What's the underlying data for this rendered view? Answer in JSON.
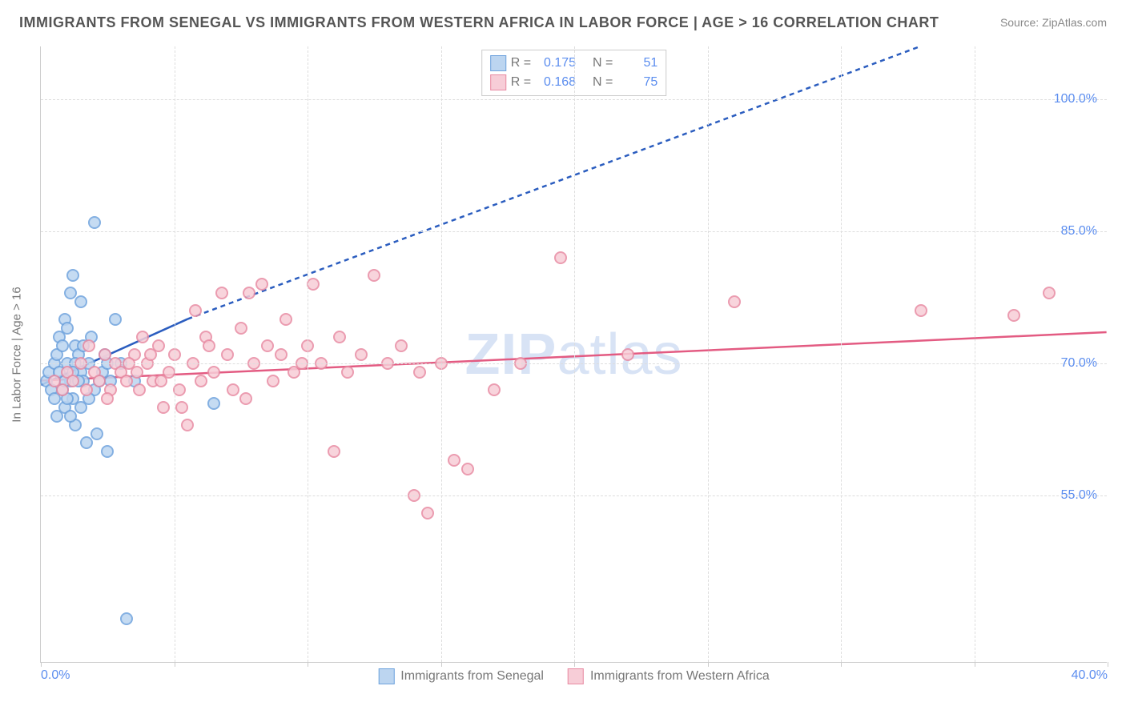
{
  "title": "IMMIGRANTS FROM SENEGAL VS IMMIGRANTS FROM WESTERN AFRICA IN LABOR FORCE | AGE > 16 CORRELATION CHART",
  "source": "Source: ZipAtlas.com",
  "watermark_prefix": "ZIP",
  "watermark_suffix": "atlas",
  "chart": {
    "type": "scatter",
    "ylabel": "In Labor Force | Age > 16",
    "xlim": [
      0,
      40
    ],
    "ylim": [
      36,
      106
    ],
    "yticks": [
      55.0,
      70.0,
      85.0,
      100.0
    ],
    "ytick_labels": [
      "55.0%",
      "70.0%",
      "85.0%",
      "100.0%"
    ],
    "xtick_positions": [
      0,
      5,
      10,
      15,
      20,
      25,
      30,
      35,
      40
    ],
    "xtick_labels": {
      "0": "0.0%",
      "40": "40.0%"
    },
    "grid_color": "#dddddd",
    "axis_color": "#cccccc",
    "background_color": "#ffffff"
  },
  "series": [
    {
      "name": "Immigrants from Senegal",
      "color_fill": "#bcd5f0",
      "color_stroke": "#6fa3dd",
      "line_color": "#2b5dbf",
      "R_label": "R =",
      "R": "0.175",
      "N_label": "N =",
      "N": "51",
      "trend_solid": {
        "x1": 0,
        "y1": 67.5,
        "x2": 5.5,
        "y2": 75.0
      },
      "trend_dash": {
        "x1": 5.5,
        "y1": 75.0,
        "x2": 33.0,
        "y2": 106.0
      },
      "points": [
        [
          0.2,
          68
        ],
        [
          0.3,
          69
        ],
        [
          0.4,
          67
        ],
        [
          0.5,
          70
        ],
        [
          0.5,
          66
        ],
        [
          0.6,
          71
        ],
        [
          0.6,
          64
        ],
        [
          0.7,
          73
        ],
        [
          0.7,
          69
        ],
        [
          0.8,
          67
        ],
        [
          0.8,
          72
        ],
        [
          0.9,
          75
        ],
        [
          0.9,
          65
        ],
        [
          1.0,
          70
        ],
        [
          1.0,
          74
        ],
        [
          1.1,
          78
        ],
        [
          1.1,
          68
        ],
        [
          1.2,
          80
        ],
        [
          1.2,
          66
        ],
        [
          1.3,
          72
        ],
        [
          1.3,
          63
        ],
        [
          1.4,
          71
        ],
        [
          1.5,
          77
        ],
        [
          1.5,
          69
        ],
        [
          1.6,
          68
        ],
        [
          1.7,
          61
        ],
        [
          1.8,
          70
        ],
        [
          1.9,
          73
        ],
        [
          2.0,
          67
        ],
        [
          2.0,
          86
        ],
        [
          2.1,
          62
        ],
        [
          2.3,
          69
        ],
        [
          2.4,
          71
        ],
        [
          2.5,
          60
        ],
        [
          2.6,
          68
        ],
        [
          2.8,
          75
        ],
        [
          3.0,
          70
        ],
        [
          3.2,
          41
        ],
        [
          3.5,
          68
        ],
        [
          1.0,
          66
        ],
        [
          1.1,
          64
        ],
        [
          1.3,
          70
        ],
        [
          1.4,
          68
        ],
        [
          1.6,
          72
        ],
        [
          1.8,
          66
        ],
        [
          2.2,
          68
        ],
        [
          2.5,
          70
        ],
        [
          1.2,
          69
        ],
        [
          0.9,
          68
        ],
        [
          1.5,
          65
        ],
        [
          6.5,
          65.5
        ]
      ]
    },
    {
      "name": "Immigrants from Western Africa",
      "color_fill": "#f7cdd7",
      "color_stroke": "#e88ba3",
      "line_color": "#e35b82",
      "R_label": "R =",
      "R": "0.168",
      "N_label": "N =",
      "N": "75",
      "trend_solid": {
        "x1": 0,
        "y1": 68.0,
        "x2": 40,
        "y2": 73.5
      },
      "trend_dash": null,
      "points": [
        [
          0.5,
          68
        ],
        [
          0.8,
          67
        ],
        [
          1.0,
          69
        ],
        [
          1.2,
          68
        ],
        [
          1.5,
          70
        ],
        [
          1.7,
          67
        ],
        [
          1.8,
          72
        ],
        [
          2.0,
          69
        ],
        [
          2.2,
          68
        ],
        [
          2.4,
          71
        ],
        [
          2.6,
          67
        ],
        [
          2.8,
          70
        ],
        [
          3.0,
          69
        ],
        [
          3.2,
          68
        ],
        [
          3.5,
          71
        ],
        [
          3.7,
          67
        ],
        [
          3.8,
          73
        ],
        [
          4.0,
          70
        ],
        [
          4.2,
          68
        ],
        [
          4.4,
          72
        ],
        [
          4.6,
          65
        ],
        [
          4.8,
          69
        ],
        [
          5.0,
          71
        ],
        [
          5.2,
          67
        ],
        [
          5.5,
          63
        ],
        [
          5.7,
          70
        ],
        [
          5.8,
          76
        ],
        [
          6.0,
          68
        ],
        [
          6.2,
          73
        ],
        [
          6.5,
          69
        ],
        [
          6.8,
          78
        ],
        [
          7.0,
          71
        ],
        [
          7.2,
          67
        ],
        [
          7.5,
          74
        ],
        [
          7.8,
          78
        ],
        [
          8.0,
          70
        ],
        [
          8.3,
          79
        ],
        [
          8.5,
          72
        ],
        [
          9.0,
          71
        ],
        [
          9.2,
          75
        ],
        [
          9.5,
          69
        ],
        [
          10.0,
          72
        ],
        [
          10.2,
          79
        ],
        [
          10.5,
          70
        ],
        [
          11.0,
          60
        ],
        [
          11.2,
          73
        ],
        [
          11.5,
          69
        ],
        [
          12.0,
          71
        ],
        [
          12.5,
          80
        ],
        [
          13.0,
          70
        ],
        [
          13.5,
          72
        ],
        [
          14.0,
          55
        ],
        [
          14.2,
          69
        ],
        [
          14.5,
          53
        ],
        [
          15.0,
          70
        ],
        [
          15.5,
          59
        ],
        [
          16.0,
          58
        ],
        [
          17.0,
          67
        ],
        [
          18.0,
          70
        ],
        [
          19.5,
          82
        ],
        [
          22.0,
          71
        ],
        [
          26.0,
          77
        ],
        [
          2.5,
          66
        ],
        [
          4.5,
          68
        ],
        [
          5.3,
          65
        ],
        [
          7.7,
          66
        ],
        [
          3.3,
          70
        ],
        [
          3.6,
          69
        ],
        [
          4.1,
          71
        ],
        [
          6.3,
          72
        ],
        [
          8.7,
          68
        ],
        [
          9.8,
          70
        ],
        [
          36.5,
          75.5
        ],
        [
          37.8,
          78
        ],
        [
          33.0,
          76
        ]
      ]
    }
  ],
  "legend_bottom": [
    {
      "label": "Immigrants from Senegal",
      "series": 0
    },
    {
      "label": "Immigrants from Western Africa",
      "series": 1
    }
  ]
}
